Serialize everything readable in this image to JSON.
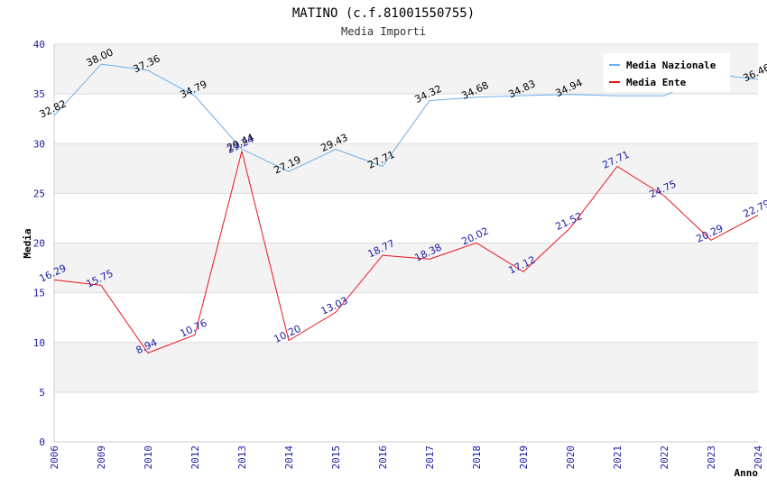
{
  "chart_data": {
    "type": "line",
    "title": "MATINO (c.f.81001550755)",
    "subtitle": "Media Importi",
    "xlabel": "Anno",
    "ylabel": "Media",
    "ylim": [
      0,
      40
    ],
    "yticks": [
      "0",
      "5",
      "10",
      "15",
      "20",
      "25",
      "30",
      "35",
      "40"
    ],
    "categories": [
      "2006",
      "2009",
      "2010",
      "2012",
      "2013",
      "2014",
      "2015",
      "2016",
      "2017",
      "2018",
      "2019",
      "2020",
      "2021",
      "2022",
      "2023",
      "2024"
    ],
    "grid": "horizontal bands",
    "legend_position": "top-right",
    "series": [
      {
        "name": "Media Nazionale",
        "color": "#6aaeea",
        "values": [
          32.82,
          38.0,
          37.36,
          34.79,
          29.44,
          27.19,
          29.43,
          27.71,
          34.32,
          34.68,
          34.83,
          34.94,
          34.8,
          34.8,
          37.0,
          36.46
        ],
        "labels": [
          "32.82",
          "38.00",
          "37.36",
          "34.79",
          "29.44",
          "27.19",
          "29.43",
          "27.71",
          "34.32",
          "34.68",
          "34.83",
          "34.94",
          "",
          "",
          "",
          "36.46"
        ]
      },
      {
        "name": "Media Ente",
        "color": "#e8141c",
        "values": [
          16.29,
          15.75,
          8.94,
          10.76,
          29.24,
          10.2,
          13.03,
          18.77,
          18.38,
          20.02,
          17.12,
          21.52,
          27.71,
          24.75,
          20.29,
          22.79
        ],
        "labels": [
          "16.29",
          "15.75",
          "8.94",
          "10.76",
          "29.24",
          "10.20",
          "13.03",
          "18.77",
          "18.38",
          "20.02",
          "17.12",
          "21.52",
          "27.71",
          "24.75",
          "20.29",
          "22.79"
        ]
      }
    ]
  }
}
